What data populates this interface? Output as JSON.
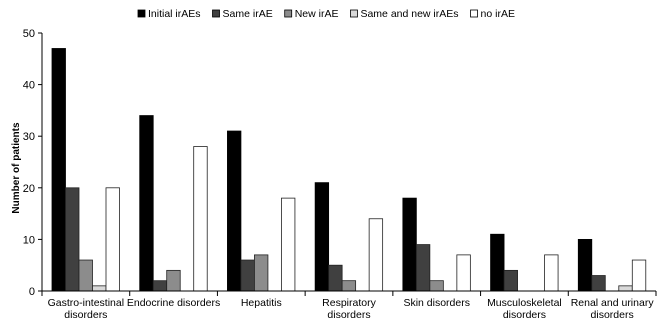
{
  "chart_data": {
    "type": "bar",
    "ylabel": "Number of patients",
    "ylim": [
      0,
      50
    ],
    "yticks": [
      0,
      10,
      20,
      30,
      40,
      50
    ],
    "grid": false,
    "legend_position": "top",
    "categories": [
      [
        "Gastro-intestinal",
        "disorders"
      ],
      [
        "Endocrine disorders"
      ],
      [
        "Hepatitis"
      ],
      [
        "Respiratory",
        "disorders"
      ],
      [
        "Skin disorders"
      ],
      [
        "Musculoskeletal",
        "disorders"
      ],
      [
        "Renal and urinary",
        "disorders"
      ]
    ],
    "series": [
      {
        "name": "Initial irAEs",
        "color": "#000000",
        "values": [
          47,
          34,
          31,
          21,
          18,
          11,
          10
        ]
      },
      {
        "name": "Same irAE",
        "color": "#404040",
        "values": [
          20,
          2,
          6,
          5,
          9,
          4,
          3
        ]
      },
      {
        "name": "New irAE",
        "color": "#8c8c8c",
        "values": [
          6,
          4,
          7,
          2,
          2,
          0,
          0
        ]
      },
      {
        "name": "Same and new irAEs",
        "color": "#d9d9d9",
        "values": [
          1,
          0,
          0,
          0,
          0,
          0,
          1
        ]
      },
      {
        "name": "no irAE",
        "color": "#ffffff",
        "values": [
          20,
          28,
          18,
          14,
          7,
          7,
          6
        ]
      }
    ]
  }
}
